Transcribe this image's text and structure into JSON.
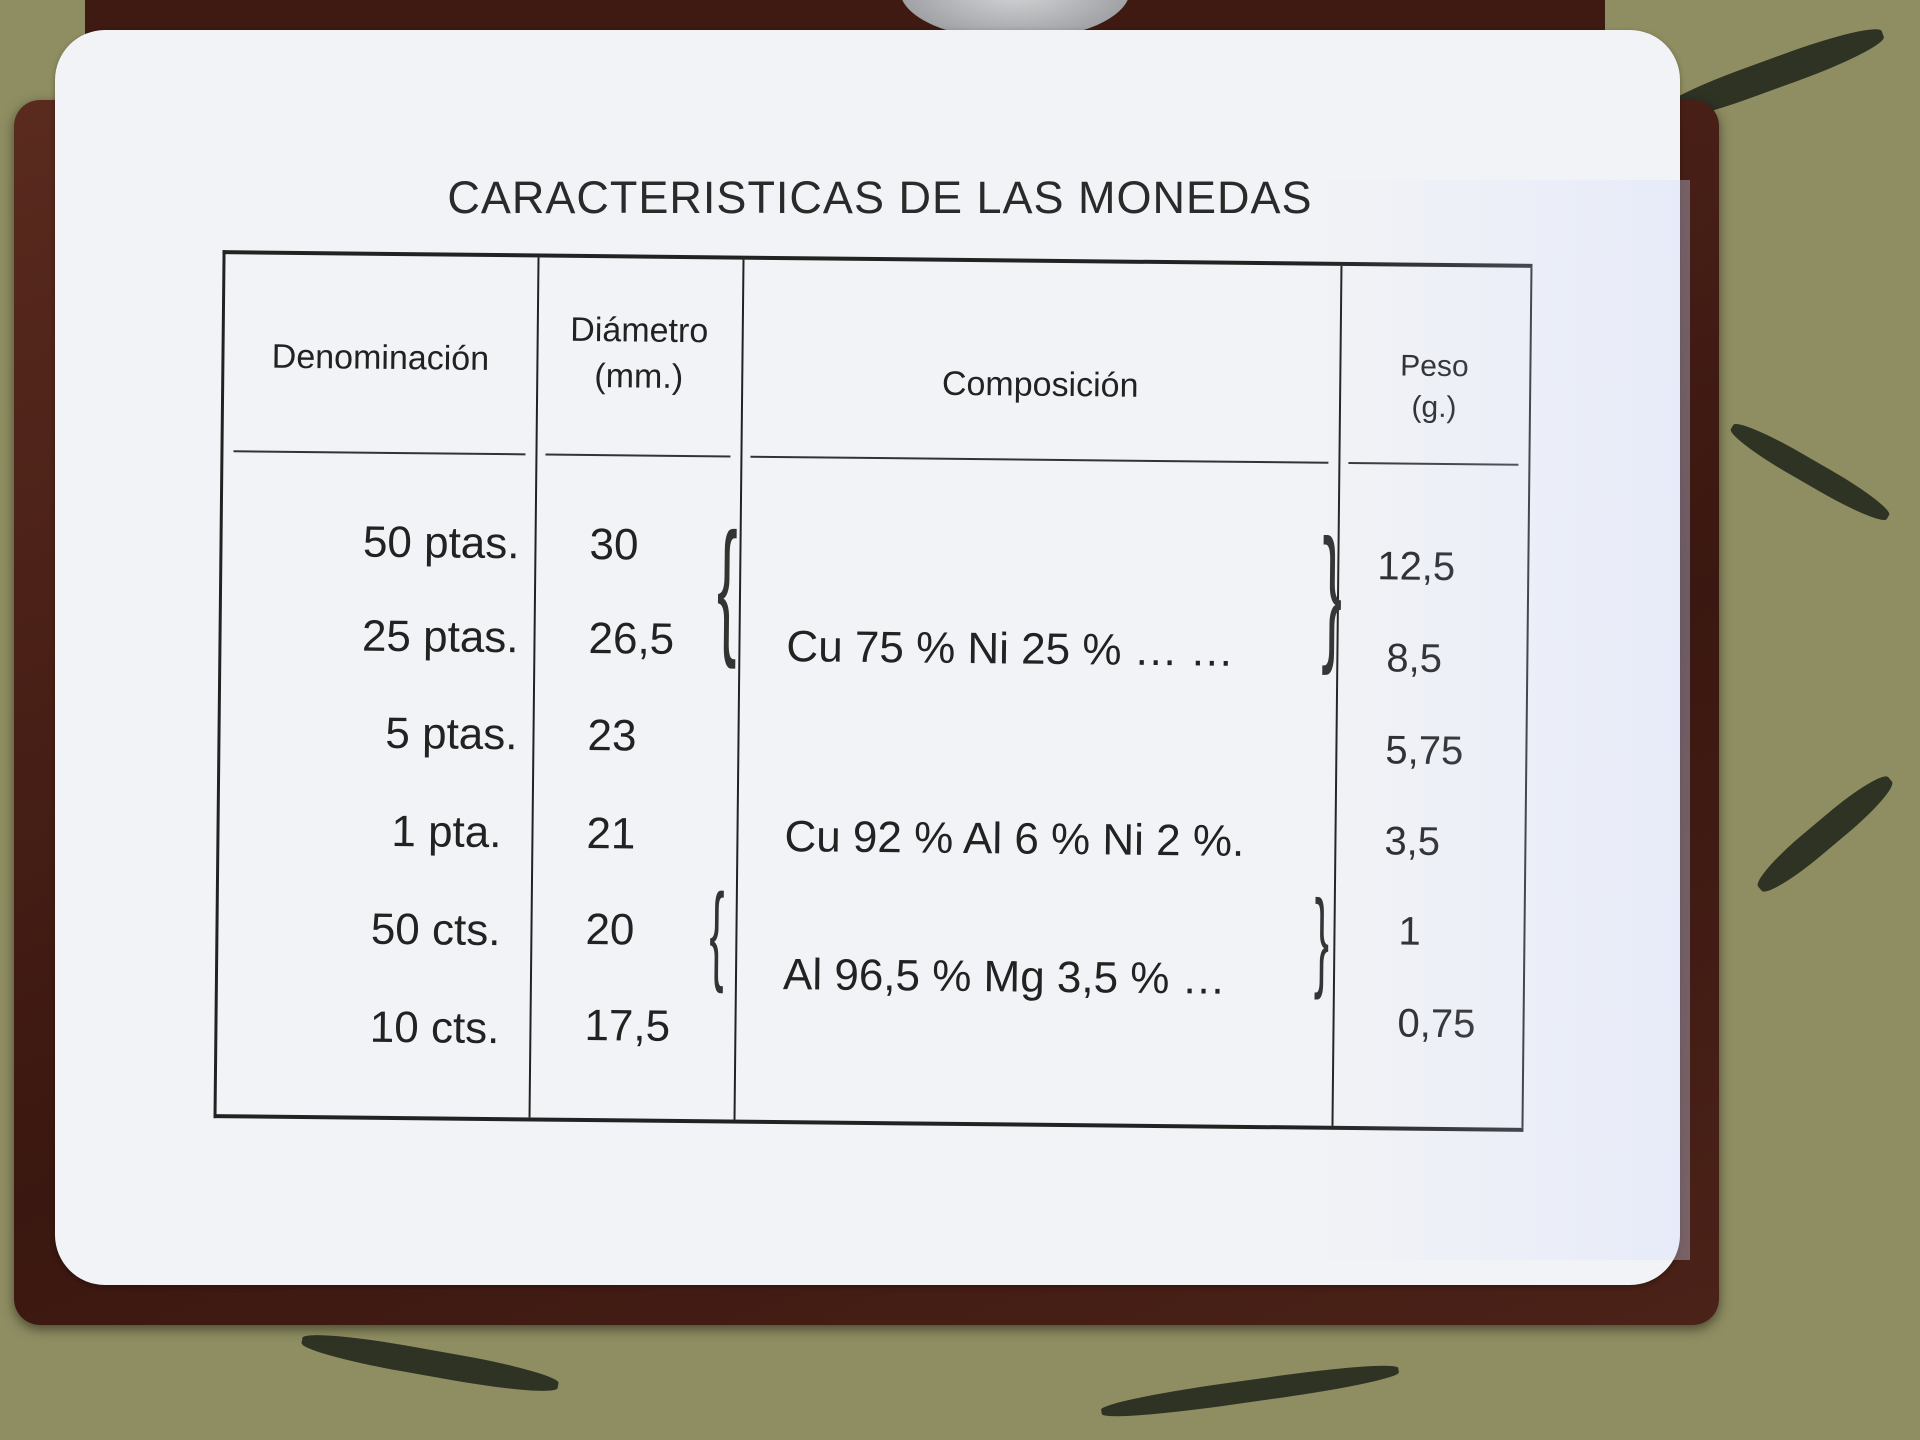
{
  "title": "CARACTERISTICAS DE LAS MONEDAS",
  "headers": {
    "denominacion": "Denominación",
    "diametro": "Diámetro",
    "diametro_unit": "(mm.)",
    "composicion": "Composición",
    "peso": "Peso",
    "peso_unit": "(g.)"
  },
  "rows": [
    {
      "denominacion": "50  ptas.",
      "diametro": "30",
      "peso": "12,5"
    },
    {
      "denominacion": "25  ptas.",
      "diametro": "26,5",
      "peso": "8,5"
    },
    {
      "denominacion": "5  ptas.",
      "diametro": "23",
      "peso": "5,75"
    },
    {
      "denominacion": "1  pta.",
      "diametro": "21",
      "peso": "3,5"
    },
    {
      "denominacion": "50  cts.",
      "diametro": "20",
      "peso": "1"
    },
    {
      "denominacion": "10  cts.",
      "diametro": "17,5",
      "peso": "0,75"
    }
  ],
  "compositions": [
    "Cu 75 %  Ni 25 %  … …",
    "Cu 92 %  Al 6 %  Ni 2 %.",
    "Al 96,5 %  Mg 3,5 %  …"
  ],
  "colors": {
    "card": "#f2f3f6",
    "wallet": "#4a2218",
    "fabric": "#8f8e62",
    "ink": "#222222"
  }
}
